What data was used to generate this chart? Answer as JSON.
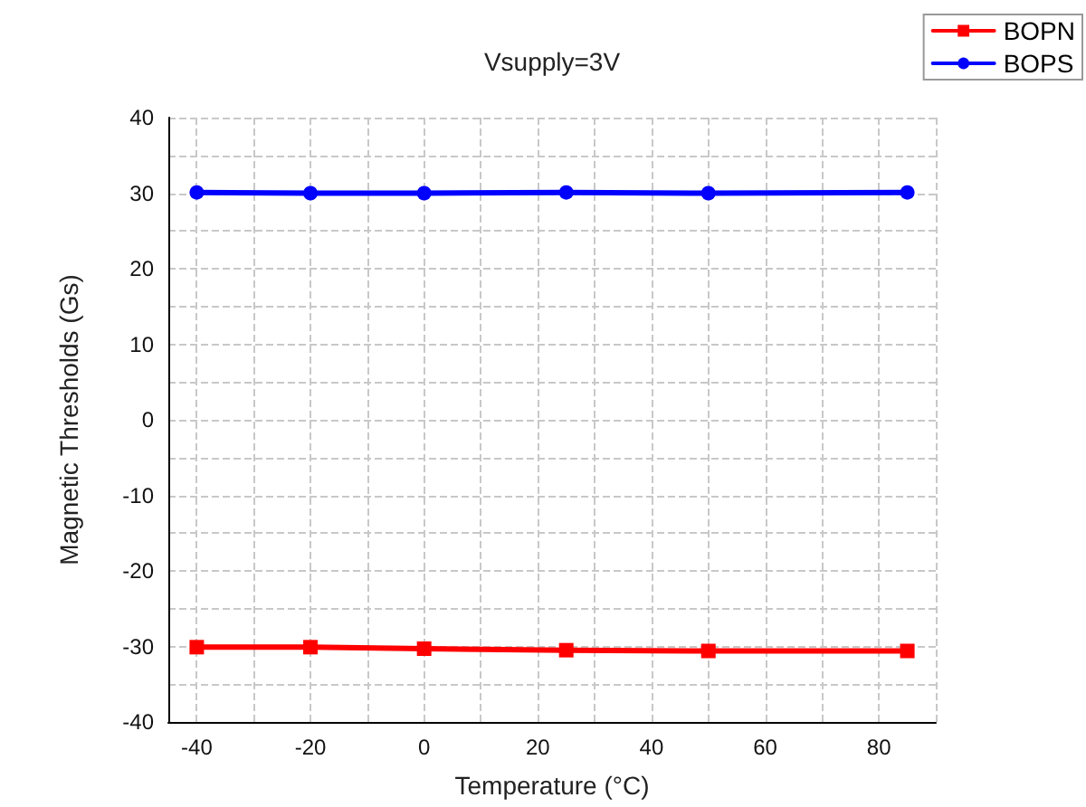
{
  "chart_data": {
    "type": "line",
    "title": "Vsupply=3V",
    "xlabel": "Temperature (°C)",
    "ylabel": "Magnetic Thresholds (Gs)",
    "x": [
      -40,
      -20,
      0,
      25,
      50,
      85
    ],
    "series": [
      {
        "name": "BOPN",
        "color": "#ff0000",
        "marker": "square",
        "values": [
          -30.1,
          -30.1,
          -30.3,
          -30.5,
          -30.6,
          -30.6
        ]
      },
      {
        "name": "BOPS",
        "color": "#0000ff",
        "marker": "circle",
        "values": [
          30.1,
          30.0,
          30.0,
          30.1,
          30.0,
          30.1
        ]
      }
    ],
    "xlim": [
      -45,
      90
    ],
    "xticks": [
      -40,
      {
        "value": -30,
        "label": null
      },
      -20,
      {
        "value": -10,
        "label": null
      },
      0,
      {
        "value": 10,
        "label": null
      },
      20,
      {
        "value": 30,
        "label": null
      },
      40,
      {
        "value": 50,
        "label": null
      },
      60,
      {
        "value": 70,
        "label": null
      },
      80,
      {
        "value": 90,
        "label": null
      }
    ],
    "ylim": [
      -40,
      40
    ],
    "yticks": [
      -40,
      {
        "value": -35,
        "label": null
      },
      -30,
      {
        "value": -25,
        "label": null
      },
      -20,
      {
        "value": -15,
        "label": null
      },
      -10,
      {
        "value": -5,
        "label": null
      },
      0,
      {
        "value": 5,
        "label": null
      },
      10,
      {
        "value": 15,
        "label": null
      },
      20,
      {
        "value": 25,
        "label": null
      },
      30,
      {
        "value": 35,
        "label": null
      },
      40
    ],
    "grid": true,
    "legend": "top right",
    "line_style": "solid"
  }
}
